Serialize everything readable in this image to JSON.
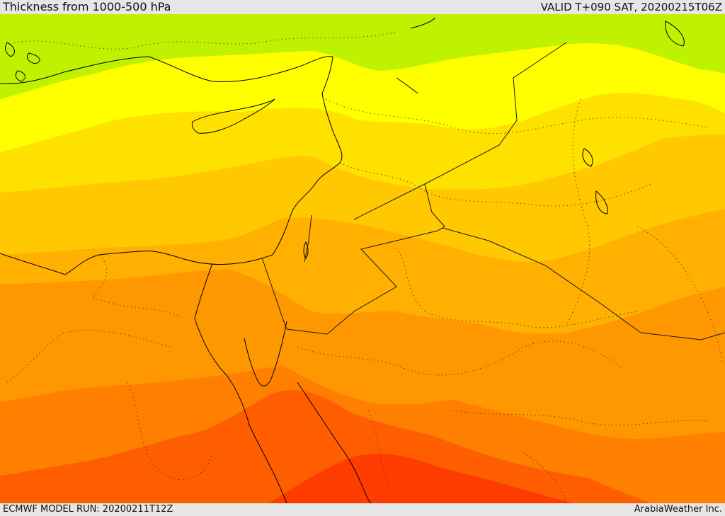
{
  "header": {
    "title": "Thickness from 1000-500 hPa",
    "valid": "VALID T+090 SAT, 20200215T06Z"
  },
  "footer": {
    "model_run": "ECMWF MODEL RUN: 20200211T12Z",
    "credit": "ArabiaWeather Inc."
  },
  "colors": {
    "band_1": "#bff200",
    "band_2": "#ffff00",
    "band_3": "#ffe100",
    "band_4": "#ffc800",
    "band_5": "#ffb000",
    "band_6": "#ff9800",
    "band_7": "#ff8000",
    "band_8": "#ff5e00",
    "band_9": "#ff3c00",
    "coastline": "#000000",
    "border": "#1a1a1a"
  }
}
